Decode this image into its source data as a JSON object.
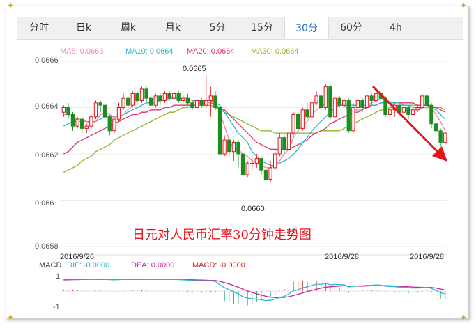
{
  "tabs": [
    {
      "label": "分时"
    },
    {
      "label": "日k"
    },
    {
      "label": "周k"
    },
    {
      "label": "月k"
    },
    {
      "label": "5分"
    },
    {
      "label": "15分"
    },
    {
      "label": "30分"
    },
    {
      "label": "60分"
    },
    {
      "label": "4h"
    }
  ],
  "active_tab": "30分",
  "legend": [
    {
      "text": "MA5: 0.0663",
      "color": "#f08aa8"
    },
    {
      "text": "MA10: 0.0664",
      "color": "#27b7cf"
    },
    {
      "text": "MA20: 0.0664",
      "color": "#e0306a"
    },
    {
      "text": "MA30: 0.0664",
      "color": "#8cb62c"
    }
  ],
  "caption": "日元对人民币汇率30分钟走势图",
  "macd_legend": {
    "label": "MACD",
    "dif": "DIF: -0.0000",
    "dea": "DEA: 0.0000",
    "macd": "MACD: -0.0000"
  },
  "colors": {
    "up": "#e8141c",
    "down": "#1a8f1e",
    "ma5": "#f08aa8",
    "ma10": "#27b7cf",
    "ma20": "#e0306a",
    "ma30": "#8cb62c",
    "dea": "#c0269a",
    "arrow": "#e8141c"
  },
  "chart_data": {
    "type": "candlestick",
    "y_ticks": [
      "0.0666",
      "0.0664",
      "0.0662",
      "0.066",
      "0.0658"
    ],
    "ylim": [
      0.0658,
      0.0666
    ],
    "x_labels": [
      "2016/9/26",
      "2016/9/28",
      "2016/9/28"
    ],
    "annotations": [
      {
        "text": "0.0665",
        "value": 0.06654
      },
      {
        "text": "0.0660",
        "value": 0.066
      }
    ],
    "candles": [
      [
        0.06638,
        0.0664,
        0.06636,
        0.06641
      ],
      [
        0.0664,
        0.06637,
        0.06635,
        0.06642
      ],
      [
        0.06637,
        0.06632,
        0.0663,
        0.06638
      ],
      [
        0.06632,
        0.06635,
        0.06631,
        0.06636
      ],
      [
        0.06635,
        0.06631,
        0.06629,
        0.06636
      ],
      [
        0.06631,
        0.06632,
        0.06629,
        0.06633
      ],
      [
        0.06632,
        0.06636,
        0.06631,
        0.06637
      ],
      [
        0.06636,
        0.06642,
        0.06635,
        0.06643
      ],
      [
        0.06642,
        0.06641,
        0.06638,
        0.06643
      ],
      [
        0.06641,
        0.06636,
        0.06634,
        0.06642
      ],
      [
        0.06636,
        0.0663,
        0.06628,
        0.06637
      ],
      [
        0.0663,
        0.06635,
        0.06629,
        0.06636
      ],
      [
        0.06635,
        0.0664,
        0.06634,
        0.06642
      ],
      [
        0.0664,
        0.06644,
        0.06639,
        0.06646
      ],
      [
        0.06644,
        0.06641,
        0.0664,
        0.06645
      ],
      [
        0.06641,
        0.06646,
        0.0664,
        0.06647
      ],
      [
        0.06646,
        0.06643,
        0.06641,
        0.06647
      ],
      [
        0.06643,
        0.06648,
        0.06642,
        0.06649
      ],
      [
        0.06648,
        0.06644,
        0.06642,
        0.06649
      ],
      [
        0.06644,
        0.06641,
        0.0664,
        0.06646
      ],
      [
        0.06641,
        0.06645,
        0.0664,
        0.06646
      ],
      [
        0.06645,
        0.06643,
        0.06641,
        0.06646
      ],
      [
        0.06643,
        0.06646,
        0.06642,
        0.06647
      ],
      [
        0.06646,
        0.06644,
        0.06643,
        0.06647
      ],
      [
        0.06644,
        0.06646,
        0.06643,
        0.06647
      ],
      [
        0.06646,
        0.06643,
        0.06642,
        0.06647
      ],
      [
        0.06643,
        0.06644,
        0.06642,
        0.06645
      ],
      [
        0.06644,
        0.06642,
        0.06641,
        0.06646
      ],
      [
        0.06642,
        0.0664,
        0.06639,
        0.06643
      ],
      [
        0.0664,
        0.06643,
        0.06639,
        0.06644
      ],
      [
        0.06643,
        0.06641,
        0.0664,
        0.06644
      ],
      [
        0.06641,
        0.06643,
        0.0664,
        0.06654
      ],
      [
        0.06643,
        0.06645,
        0.06636,
        0.06649
      ],
      [
        0.06645,
        0.0664,
        0.06639,
        0.06647
      ],
      [
        0.0664,
        0.0662,
        0.06618,
        0.06641
      ],
      [
        0.0662,
        0.06626,
        0.06619,
        0.06628
      ],
      [
        0.06626,
        0.06621,
        0.06619,
        0.06627
      ],
      [
        0.06621,
        0.06625,
        0.06617,
        0.06626
      ],
      [
        0.06625,
        0.0662,
        0.06614,
        0.06626
      ],
      [
        0.0662,
        0.06611,
        0.0661,
        0.06622
      ],
      [
        0.06611,
        0.06616,
        0.0661,
        0.06617
      ],
      [
        0.06616,
        0.06616,
        0.06613,
        0.06619
      ],
      [
        0.06616,
        0.06618,
        0.06614,
        0.0662
      ],
      [
        0.06618,
        0.06613,
        0.06611,
        0.06619
      ],
      [
        0.06613,
        0.06609,
        0.066,
        0.06615
      ],
      [
        0.06609,
        0.06614,
        0.06608,
        0.06617
      ],
      [
        0.06614,
        0.0662,
        0.06613,
        0.06622
      ],
      [
        0.0662,
        0.06627,
        0.06619,
        0.06629
      ],
      [
        0.06627,
        0.06622,
        0.0662,
        0.06628
      ],
      [
        0.06622,
        0.06629,
        0.06621,
        0.06632
      ],
      [
        0.06629,
        0.06637,
        0.06628,
        0.06638
      ],
      [
        0.06637,
        0.06631,
        0.06629,
        0.06638
      ],
      [
        0.06631,
        0.06639,
        0.0663,
        0.0664
      ],
      [
        0.06639,
        0.06636,
        0.06635,
        0.06642
      ],
      [
        0.06636,
        0.06642,
        0.06635,
        0.06644
      ],
      [
        0.06642,
        0.06645,
        0.06641,
        0.06647
      ],
      [
        0.06645,
        0.0664,
        0.06638,
        0.06646
      ],
      [
        0.0664,
        0.06649,
        0.06639,
        0.0665
      ],
      [
        0.06649,
        0.06636,
        0.06635,
        0.0665
      ],
      [
        0.06636,
        0.06644,
        0.06635,
        0.06645
      ],
      [
        0.06644,
        0.06641,
        0.0664,
        0.06645
      ],
      [
        0.06641,
        0.06643,
        0.0664,
        0.06644
      ],
      [
        0.06643,
        0.0663,
        0.06629,
        0.06644
      ],
      [
        0.0663,
        0.0664,
        0.06629,
        0.06642
      ],
      [
        0.0664,
        0.06643,
        0.06639,
        0.06644
      ],
      [
        0.06643,
        0.0664,
        0.06638,
        0.06644
      ],
      [
        0.0664,
        0.06645,
        0.06639,
        0.06647
      ],
      [
        0.06645,
        0.06643,
        0.06641,
        0.06646
      ],
      [
        0.06643,
        0.06646,
        0.06642,
        0.06647
      ],
      [
        0.06646,
        0.06644,
        0.06643,
        0.06647
      ],
      [
        0.06644,
        0.06637,
        0.06636,
        0.06645
      ],
      [
        0.06637,
        0.06639,
        0.06636,
        0.0664
      ],
      [
        0.06639,
        0.06641,
        0.06636,
        0.06642
      ],
      [
        0.06641,
        0.06638,
        0.06637,
        0.06642
      ],
      [
        0.06638,
        0.0664,
        0.06637,
        0.06641
      ],
      [
        0.0664,
        0.06637,
        0.06635,
        0.06641
      ],
      [
        0.06637,
        0.06639,
        0.06636,
        0.0664
      ],
      [
        0.06639,
        0.0664,
        0.06638,
        0.06641
      ],
      [
        0.0664,
        0.06645,
        0.06639,
        0.06646
      ],
      [
        0.06645,
        0.06641,
        0.06639,
        0.06646
      ],
      [
        0.06641,
        0.06633,
        0.06631,
        0.06642
      ],
      [
        0.06633,
        0.0663,
        0.06628,
        0.06634
      ],
      [
        0.0663,
        0.06625,
        0.06623,
        0.06631
      ],
      [
        0.06625,
        0.06629,
        0.06624,
        0.0663
      ]
    ],
    "ma5": [
      0.06637,
      0.06637,
      0.06636,
      0.06635,
      0.06635,
      0.06634,
      0.06633,
      0.06634,
      0.06637,
      0.06638,
      0.06637,
      0.06636,
      0.06636,
      0.06637,
      0.06639,
      0.06641,
      0.06643,
      0.06644,
      0.06645,
      0.06644,
      0.06643,
      0.06643,
      0.06643,
      0.06644,
      0.06645,
      0.06644,
      0.06644,
      0.06644,
      0.06643,
      0.06642,
      0.06642,
      0.06642,
      0.06642,
      0.06642,
      0.06638,
      0.06632,
      0.06626,
      0.06622,
      0.06622,
      0.0662,
      0.06619,
      0.06617,
      0.06616,
      0.06615,
      0.06614,
      0.06614,
      0.06615,
      0.06617,
      0.0662,
      0.06622,
      0.06627,
      0.0663,
      0.06632,
      0.06634,
      0.06637,
      0.06639,
      0.0664,
      0.06642,
      0.06643,
      0.06642,
      0.06642,
      0.06641,
      0.06639,
      0.06639,
      0.06639,
      0.06639,
      0.06641,
      0.06642,
      0.06643,
      0.06644,
      0.06643,
      0.06642,
      0.06641,
      0.0664,
      0.06639,
      0.06639,
      0.06639,
      0.06639,
      0.0664,
      0.0664,
      0.0664,
      0.06637,
      0.06634,
      0.0663
    ],
    "ma10": [
      0.06632,
      0.06633,
      0.06634,
      0.06634,
      0.06634,
      0.06634,
      0.06634,
      0.06634,
      0.06635,
      0.06636,
      0.06636,
      0.06636,
      0.06636,
      0.06637,
      0.06638,
      0.06639,
      0.0664,
      0.06641,
      0.06642,
      0.06642,
      0.06642,
      0.06643,
      0.06643,
      0.06644,
      0.06644,
      0.06644,
      0.06644,
      0.06644,
      0.06643,
      0.06643,
      0.06643,
      0.06643,
      0.06643,
      0.06642,
      0.06641,
      0.06638,
      0.06635,
      0.06632,
      0.06629,
      0.06627,
      0.06625,
      0.06621,
      0.06619,
      0.06617,
      0.06616,
      0.06615,
      0.06615,
      0.06616,
      0.06617,
      0.06618,
      0.0662,
      0.06622,
      0.06625,
      0.06627,
      0.0663,
      0.06632,
      0.06634,
      0.06636,
      0.06638,
      0.0664,
      0.06641,
      0.06641,
      0.06641,
      0.06641,
      0.06641,
      0.06641,
      0.06641,
      0.06641,
      0.06641,
      0.06642,
      0.06642,
      0.06642,
      0.06642,
      0.06642,
      0.06641,
      0.06641,
      0.0664,
      0.0664,
      0.0664,
      0.0664,
      0.0664,
      0.06639,
      0.06637,
      0.06635
    ],
    "ma20": [
      0.0662,
      0.06621,
      0.06623,
      0.06625,
      0.06626,
      0.06627,
      0.06628,
      0.06629,
      0.0663,
      0.06631,
      0.06632,
      0.06633,
      0.06634,
      0.06635,
      0.06636,
      0.06637,
      0.06637,
      0.06638,
      0.06638,
      0.06639,
      0.06639,
      0.06639,
      0.0664,
      0.0664,
      0.06641,
      0.06641,
      0.06641,
      0.06641,
      0.06641,
      0.06641,
      0.06642,
      0.06642,
      0.06642,
      0.06641,
      0.0664,
      0.06639,
      0.06637,
      0.06635,
      0.06633,
      0.06631,
      0.06629,
      0.06627,
      0.06625,
      0.06624,
      0.06623,
      0.06622,
      0.06622,
      0.06622,
      0.06622,
      0.06622,
      0.06623,
      0.06624,
      0.06625,
      0.06626,
      0.06628,
      0.06629,
      0.0663,
      0.06631,
      0.06633,
      0.06634,
      0.06635,
      0.06636,
      0.06637,
      0.06638,
      0.06638,
      0.06639,
      0.0664,
      0.06641,
      0.06641,
      0.06642,
      0.06642,
      0.06642,
      0.06642,
      0.06642,
      0.06642,
      0.06642,
      0.06642,
      0.06641,
      0.06641,
      0.06641,
      0.0664,
      0.0664,
      0.06639,
      0.06638
    ],
    "ma30": [
      0.06612,
      0.06613,
      0.06614,
      0.06615,
      0.06617,
      0.06618,
      0.06619,
      0.06621,
      0.06622,
      0.06623,
      0.06624,
      0.06626,
      0.06627,
      0.06628,
      0.06629,
      0.0663,
      0.06631,
      0.06632,
      0.06633,
      0.06634,
      0.06635,
      0.06636,
      0.06637,
      0.06638,
      0.06638,
      0.06639,
      0.0664,
      0.0664,
      0.06641,
      0.06641,
      0.06641,
      0.06641,
      0.06641,
      0.0664,
      0.06639,
      0.06638,
      0.06637,
      0.06636,
      0.06635,
      0.06634,
      0.06633,
      0.06632,
      0.06631,
      0.0663,
      0.0663,
      0.0663,
      0.06629,
      0.06629,
      0.06629,
      0.06629,
      0.06629,
      0.06629,
      0.06629,
      0.06629,
      0.06629,
      0.06629,
      0.0663,
      0.0663,
      0.0663,
      0.0663,
      0.0663,
      0.06631,
      0.06632,
      0.06633,
      0.06634,
      0.06635,
      0.06636,
      0.06637,
      0.06638,
      0.06639,
      0.06639,
      0.0664,
      0.0664,
      0.06641,
      0.06641,
      0.06641,
      0.06641,
      0.06641,
      0.06641,
      0.06641,
      0.06641,
      0.0664,
      0.0664,
      0.06639
    ],
    "macd_ticks": [
      "1",
      "-1"
    ],
    "dif": [
      0.85,
      0.86,
      0.86,
      0.85,
      0.85,
      0.84,
      0.83,
      0.84,
      0.85,
      0.84,
      0.82,
      0.81,
      0.82,
      0.84,
      0.84,
      0.86,
      0.85,
      0.87,
      0.86,
      0.84,
      0.84,
      0.83,
      0.84,
      0.83,
      0.84,
      0.82,
      0.81,
      0.79,
      0.76,
      0.75,
      0.73,
      0.73,
      0.74,
      0.7,
      0.45,
      0.25,
      0.1,
      -0.05,
      -0.2,
      -0.4,
      -0.5,
      -0.55,
      -0.58,
      -0.62,
      -0.68,
      -0.66,
      -0.58,
      -0.45,
      -0.38,
      -0.2,
      0.02,
      0.1,
      0.25,
      0.3,
      0.4,
      0.5,
      0.48,
      0.58,
      0.45,
      0.48,
      0.46,
      0.46,
      0.3,
      0.34,
      0.38,
      0.38,
      0.42,
      0.42,
      0.44,
      0.43,
      0.35,
      0.33,
      0.32,
      0.28,
      0.27,
      0.23,
      0.22,
      0.22,
      0.24,
      0.28,
      0.2,
      0.05,
      -0.12,
      -0.2
    ],
    "dea": [
      0.8,
      0.81,
      0.82,
      0.82,
      0.83,
      0.83,
      0.83,
      0.83,
      0.83,
      0.83,
      0.83,
      0.83,
      0.83,
      0.83,
      0.83,
      0.84,
      0.84,
      0.84,
      0.84,
      0.84,
      0.84,
      0.84,
      0.84,
      0.84,
      0.84,
      0.83,
      0.83,
      0.82,
      0.81,
      0.8,
      0.79,
      0.78,
      0.77,
      0.76,
      0.7,
      0.61,
      0.51,
      0.4,
      0.28,
      0.14,
      0.01,
      -0.1,
      -0.2,
      -0.29,
      -0.37,
      -0.43,
      -0.46,
      -0.46,
      -0.45,
      -0.4,
      -0.32,
      -0.23,
      -0.13,
      -0.04,
      0.05,
      0.14,
      0.21,
      0.28,
      0.31,
      0.34,
      0.36,
      0.38,
      0.36,
      0.36,
      0.36,
      0.36,
      0.37,
      0.38,
      0.39,
      0.4,
      0.39,
      0.38,
      0.37,
      0.35,
      0.33,
      0.31,
      0.29,
      0.28,
      0.27,
      0.27,
      0.26,
      0.22,
      0.15,
      0.08
    ],
    "macd": [
      0.1,
      0.1,
      0.08,
      0.06,
      0.04,
      0.02,
      0.0,
      0.02,
      0.04,
      0.02,
      -0.02,
      -0.04,
      -0.02,
      0.02,
      0.02,
      0.04,
      0.02,
      0.06,
      0.04,
      0.0,
      0.0,
      -0.02,
      0.0,
      -0.02,
      0.0,
      -0.02,
      -0.04,
      -0.06,
      -0.1,
      -0.1,
      -0.12,
      -0.1,
      -0.06,
      -0.12,
      -0.5,
      -0.72,
      -0.82,
      -0.9,
      -0.96,
      -1.08,
      -1.02,
      -0.9,
      -0.76,
      -0.66,
      -0.62,
      -0.46,
      -0.24,
      0.02,
      0.14,
      0.4,
      0.68,
      0.66,
      0.76,
      0.68,
      0.7,
      0.72,
      0.54,
      0.6,
      0.28,
      0.28,
      0.2,
      0.16,
      -0.12,
      -0.04,
      0.04,
      0.04,
      0.1,
      0.08,
      0.1,
      0.06,
      -0.08,
      -0.1,
      -0.1,
      -0.14,
      -0.12,
      -0.16,
      -0.14,
      -0.12,
      -0.06,
      0.02,
      -0.12,
      -0.34,
      -0.54,
      -0.56
    ]
  }
}
